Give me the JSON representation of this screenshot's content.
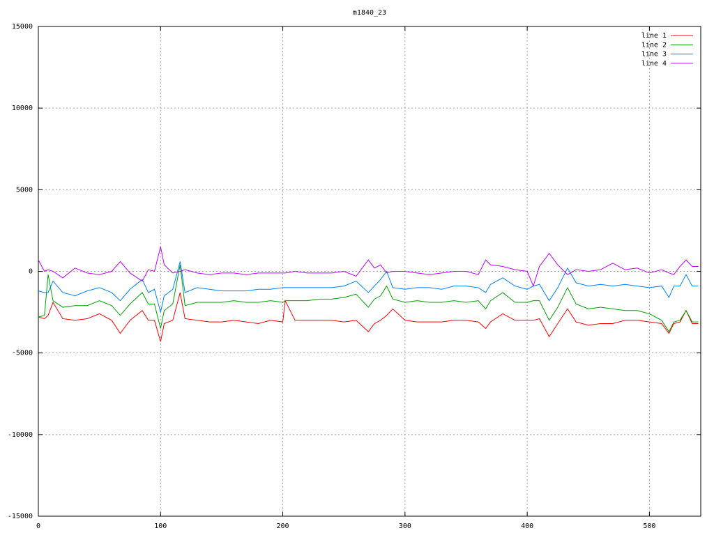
{
  "chart_data": {
    "type": "line",
    "title": "m1840_23",
    "x": [
      0,
      5,
      8,
      12,
      20,
      30,
      40,
      50,
      60,
      67,
      75,
      85,
      90,
      95,
      100,
      103,
      110,
      116,
      120,
      130,
      140,
      150,
      160,
      170,
      180,
      190,
      200,
      202,
      210,
      220,
      230,
      240,
      250,
      260,
      270,
      275,
      280,
      285,
      290,
      300,
      310,
      320,
      330,
      340,
      350,
      360,
      366,
      370,
      380,
      390,
      400,
      405,
      410,
      418,
      425,
      433,
      440,
      450,
      460,
      470,
      480,
      490,
      500,
      510,
      516,
      520,
      525,
      530,
      535,
      540
    ],
    "series": [
      {
        "name": "line 1",
        "color": "#ff0000",
        "values": [
          -2800,
          -2900,
          -2700,
          -1900,
          -2900,
          -3000,
          -2900,
          -2600,
          -3000,
          -3800,
          -3000,
          -2400,
          -3000,
          -3000,
          -4300,
          -3200,
          -3000,
          -1300,
          -2900,
          -3000,
          -3100,
          -3100,
          -3000,
          -3100,
          -3200,
          -3000,
          -3100,
          -1800,
          -3000,
          -3000,
          -3000,
          -3000,
          -3100,
          -3000,
          -3700,
          -3200,
          -3000,
          -2700,
          -2300,
          -3000,
          -3100,
          -3100,
          -3100,
          -3000,
          -3000,
          -3100,
          -3500,
          -3100,
          -2600,
          -3000,
          -3000,
          -3000,
          -2900,
          -4000,
          -3200,
          -2300,
          -3100,
          -3300,
          -3200,
          -3200,
          -3000,
          -3000,
          -3100,
          -3200,
          -3800,
          -3200,
          -3100,
          -2400,
          -3200,
          -3200
        ]
      },
      {
        "name": "line 2",
        "color": "#00a000",
        "values": [
          -2800,
          -2700,
          -200,
          -1800,
          -2200,
          -2100,
          -2100,
          -1800,
          -2100,
          -2700,
          -2000,
          -1300,
          -2000,
          -2000,
          -3500,
          -2400,
          -2000,
          400,
          -2100,
          -1900,
          -1900,
          -1900,
          -1800,
          -1900,
          -1900,
          -1800,
          -1900,
          -1800,
          -1800,
          -1800,
          -1700,
          -1700,
          -1600,
          -1400,
          -2200,
          -1700,
          -1500,
          -900,
          -1700,
          -1900,
          -1800,
          -1900,
          -1900,
          -1800,
          -1900,
          -1800,
          -2300,
          -1800,
          -1300,
          -1900,
          -1900,
          -1800,
          -1800,
          -3000,
          -2200,
          -1000,
          -2000,
          -2300,
          -2200,
          -2300,
          -2400,
          -2400,
          -2600,
          -3000,
          -3700,
          -3100,
          -3000,
          -2400,
          -3100,
          -3100
        ]
      },
      {
        "name": "line 3",
        "color": "#0080ff",
        "values": [
          -1200,
          -1300,
          -1300,
          -600,
          -1300,
          -1500,
          -1200,
          -1000,
          -1300,
          -1800,
          -1100,
          -500,
          -1300,
          -1100,
          -2500,
          -1500,
          -1100,
          600,
          -1300,
          -1000,
          -1100,
          -1200,
          -1200,
          -1200,
          -1100,
          -1100,
          -1000,
          -1000,
          -1000,
          -1000,
          -1000,
          -1000,
          -900,
          -600,
          -1300,
          -900,
          -500,
          0,
          -1000,
          -1100,
          -1000,
          -1000,
          -1100,
          -900,
          -900,
          -1000,
          -1300,
          -800,
          -400,
          -900,
          -1100,
          -900,
          -800,
          -1800,
          -1000,
          200,
          -700,
          -900,
          -800,
          -900,
          -800,
          -900,
          -1000,
          -900,
          -1600,
          -900,
          -900,
          -200,
          -900,
          -900
        ]
      },
      {
        "name": "line 4",
        "color": "#c000ff",
        "values": [
          700,
          0,
          100,
          0,
          -400,
          200,
          -100,
          -200,
          0,
          600,
          -100,
          -600,
          100,
          0,
          1500,
          400,
          -100,
          0,
          100,
          -100,
          -200,
          -100,
          -100,
          -200,
          -100,
          -100,
          -100,
          -100,
          0,
          -100,
          -100,
          -100,
          0,
          -300,
          700,
          200,
          400,
          -100,
          0,
          0,
          -100,
          -200,
          -100,
          0,
          0,
          -200,
          700,
          400,
          300,
          100,
          0,
          -900,
          300,
          1100,
          400,
          -200,
          100,
          0,
          100,
          500,
          100,
          200,
          -100,
          100,
          -100,
          -200,
          300,
          700,
          300,
          300
        ]
      }
    ],
    "xlim": [
      0,
      542
    ],
    "xticks": [
      0,
      100,
      200,
      300,
      400,
      500
    ],
    "ylim": [
      -15000,
      15000
    ],
    "yticks": [
      -15000,
      -10000,
      -5000,
      0,
      5000,
      10000,
      15000
    ],
    "grid": true,
    "legend": "top-right"
  }
}
